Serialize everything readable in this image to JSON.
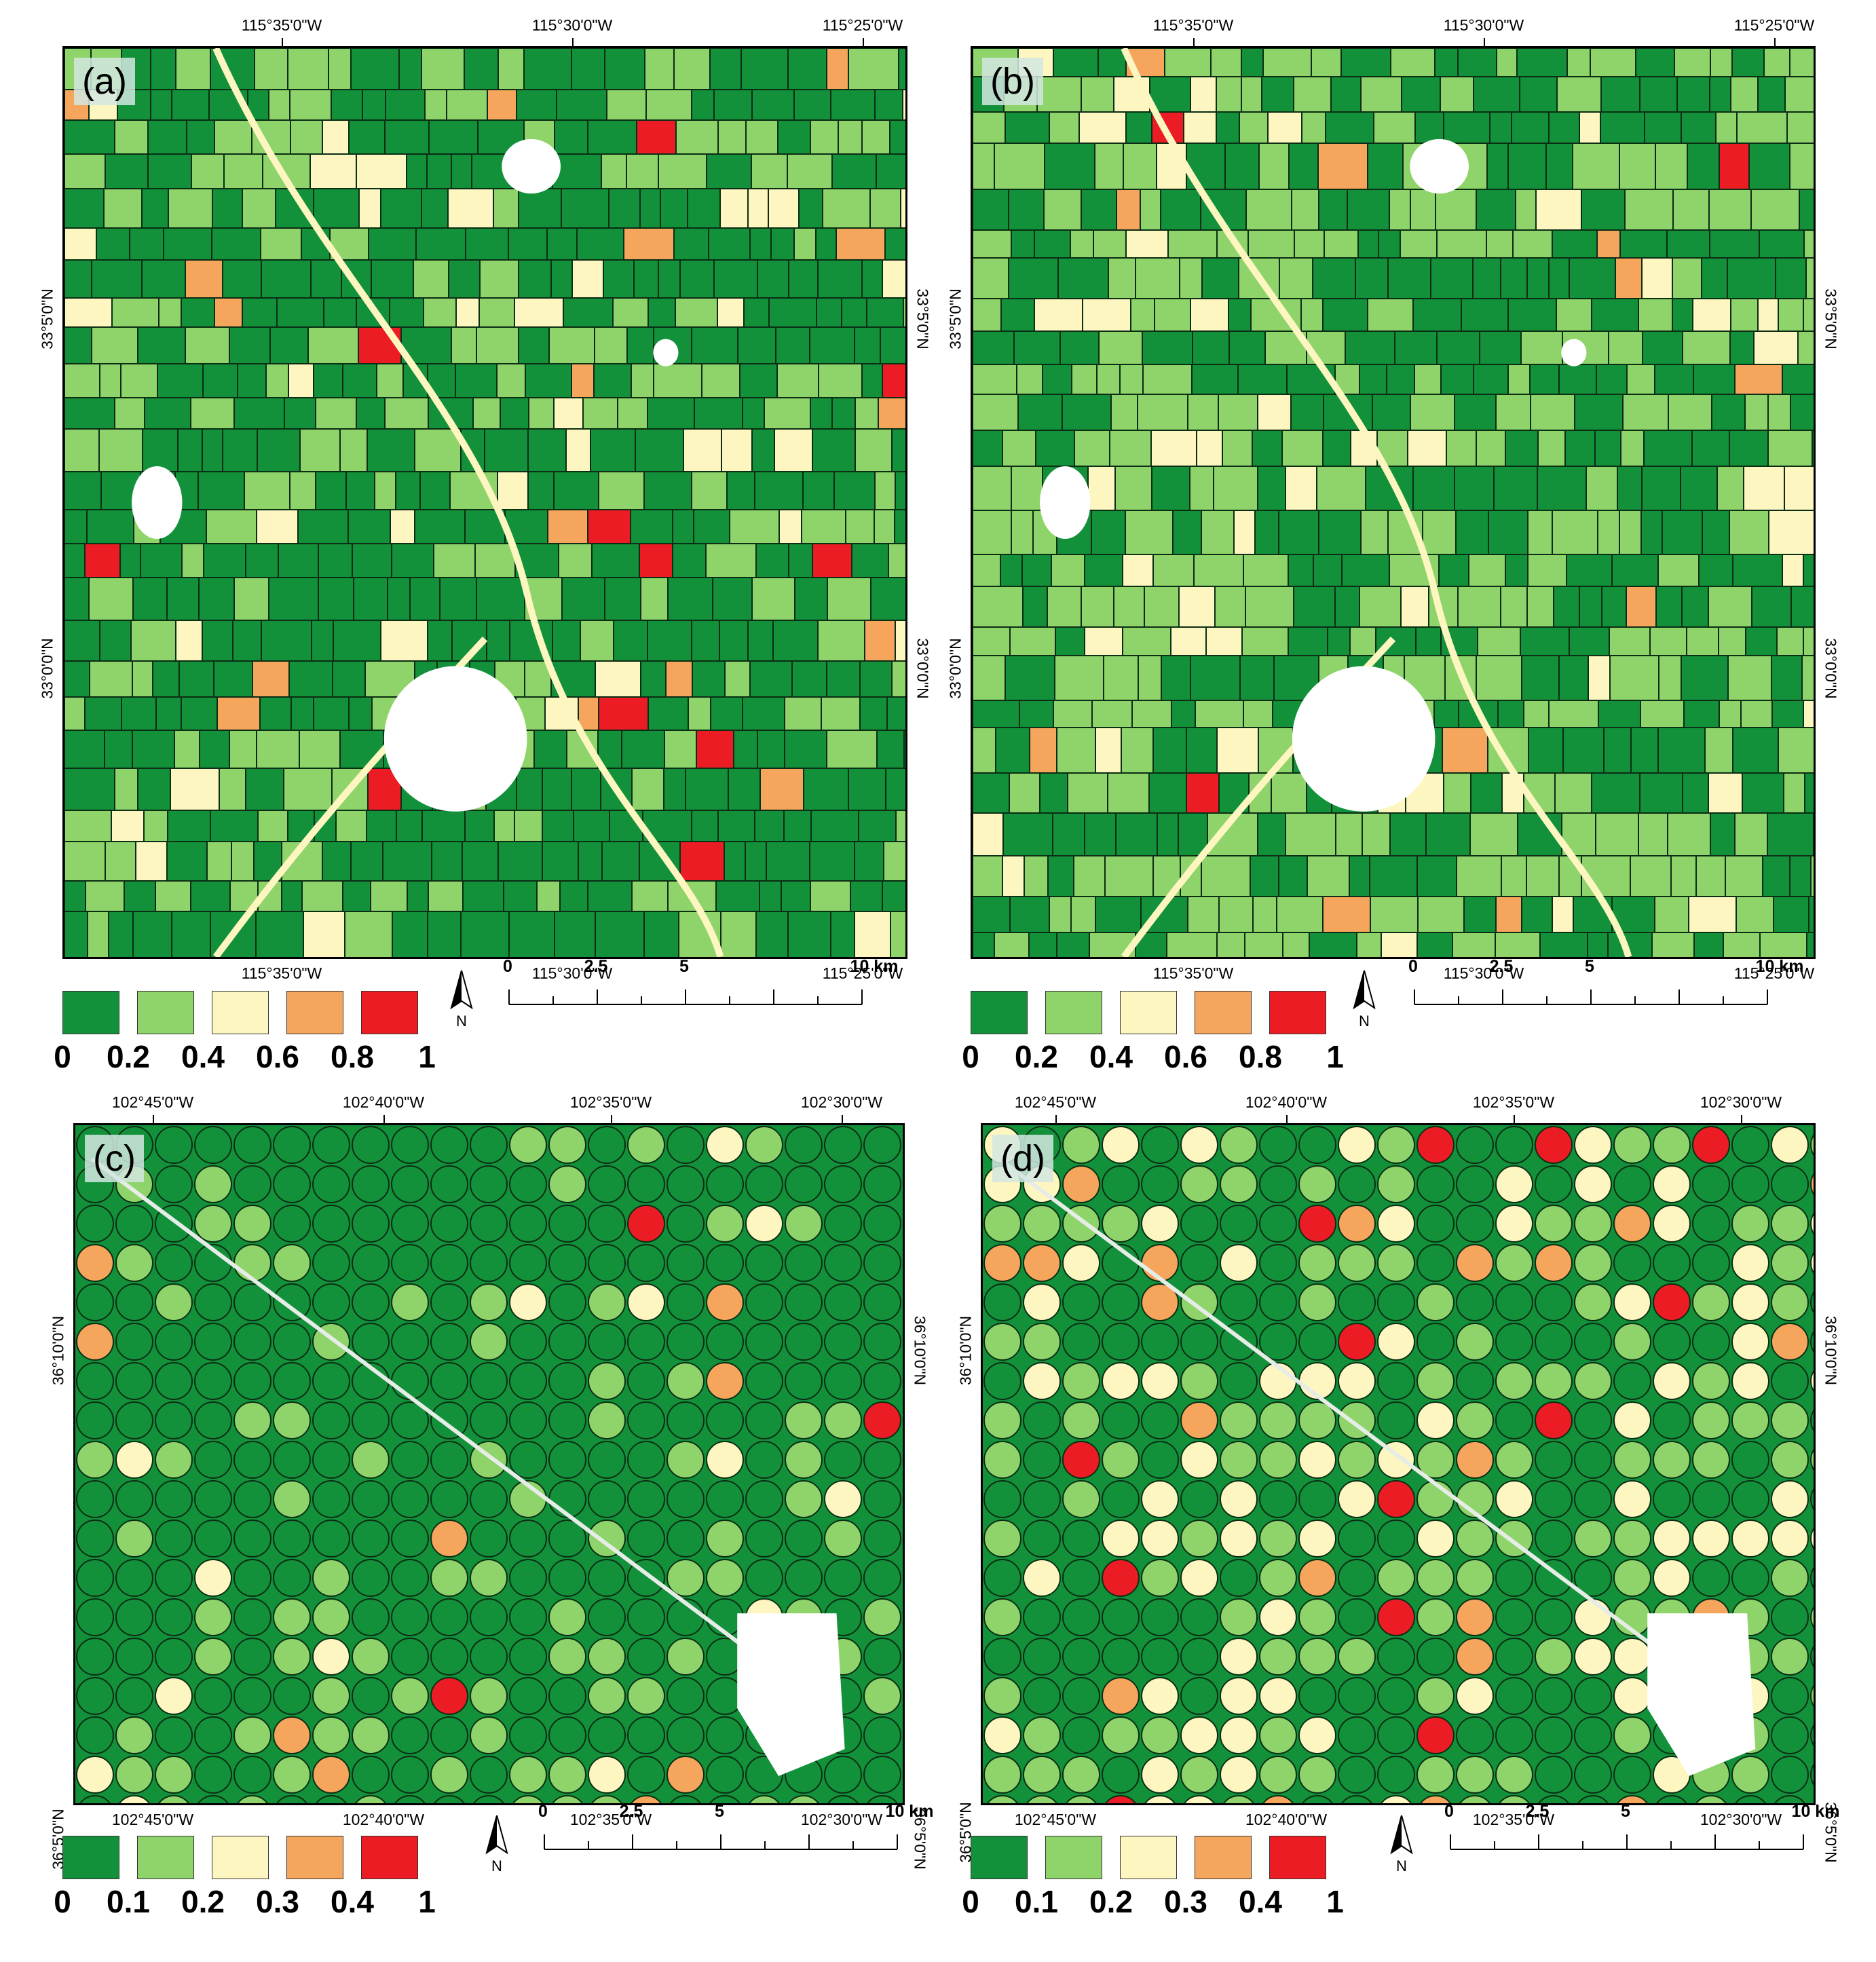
{
  "colors": {
    "class0": "#12913a",
    "class1": "#8fd46a",
    "class2": "#fdf6c0",
    "class3": "#f6a55c",
    "class4": "#ec1c24",
    "nodata": "#ffffff"
  },
  "panels": [
    {
      "id": "a",
      "label": "(a)",
      "top_lon_labels": [
        "115°35'0\"W",
        "115°30'0\"W",
        "115°25'0\"W"
      ],
      "bottom_lon_labels": [
        "115°35'0\"W",
        "115°30'0\"W",
        "115°25'0\"W"
      ],
      "lat_labels": [
        "33°5'0\"N",
        "33°0'0\"N"
      ],
      "legend_values": [
        "0",
        "0.2",
        "0.4",
        "0.6",
        "0.8",
        "1"
      ],
      "north_label": "N",
      "scale_labels": [
        "0",
        "2.5",
        "5",
        "10 km"
      ],
      "pattern": "grid",
      "class_weights": [
        0.62,
        0.3,
        0.05,
        0.02,
        0.01
      ]
    },
    {
      "id": "b",
      "label": "(b)",
      "top_lon_labels": [
        "115°35'0\"W",
        "115°30'0\"W",
        "115°25'0\"W"
      ],
      "bottom_lon_labels": [
        "115°35'0\"W",
        "115°30'0\"W",
        "115°25'0\"W"
      ],
      "lat_labels": [
        "33°5'0\"N",
        "33°0'0\"N"
      ],
      "legend_values": [
        "0",
        "0.2",
        "0.4",
        "0.6",
        "0.8",
        "1"
      ],
      "north_label": "N",
      "scale_labels": [
        "0",
        "2.5",
        "5",
        "10 km"
      ],
      "pattern": "grid",
      "class_weights": [
        0.45,
        0.45,
        0.07,
        0.02,
        0.01
      ]
    },
    {
      "id": "c",
      "label": "(c)",
      "top_lon_labels": [
        "102°45'0\"W",
        "102°40'0\"W",
        "102°35'0\"W",
        "102°30'0\"W"
      ],
      "bottom_lon_labels": [
        "102°45'0\"W",
        "102°40'0\"W",
        "102°35'0\"W",
        "102°30'0\"W"
      ],
      "lat_labels": [
        "36°10'0\"N",
        "36°5'0\"N"
      ],
      "legend_values": [
        "0",
        "0.1",
        "0.2",
        "0.3",
        "0.4",
        "1"
      ],
      "north_label": "N",
      "scale_labels": [
        "0",
        "2.5",
        "5",
        "10 km"
      ],
      "pattern": "pivot",
      "class_weights": [
        0.74,
        0.2,
        0.04,
        0.015,
        0.005
      ]
    },
    {
      "id": "d",
      "label": "(d)",
      "top_lon_labels": [
        "102°45'0\"W",
        "102°40'0\"W",
        "102°35'0\"W",
        "102°30'0\"W"
      ],
      "bottom_lon_labels": [
        "102°45'0\"W",
        "102°40'0\"W",
        "102°35'0\"W",
        "102°30'0\"W"
      ],
      "lat_labels": [
        "36°10'0\"N",
        "36°5'0\"N"
      ],
      "legend_values": [
        "0",
        "0.1",
        "0.2",
        "0.3",
        "0.4",
        "1"
      ],
      "north_label": "N",
      "scale_labels": [
        "0",
        "2.5",
        "5",
        "10 km"
      ],
      "pattern": "pivot",
      "class_weights": [
        0.42,
        0.33,
        0.17,
        0.06,
        0.02
      ]
    }
  ]
}
